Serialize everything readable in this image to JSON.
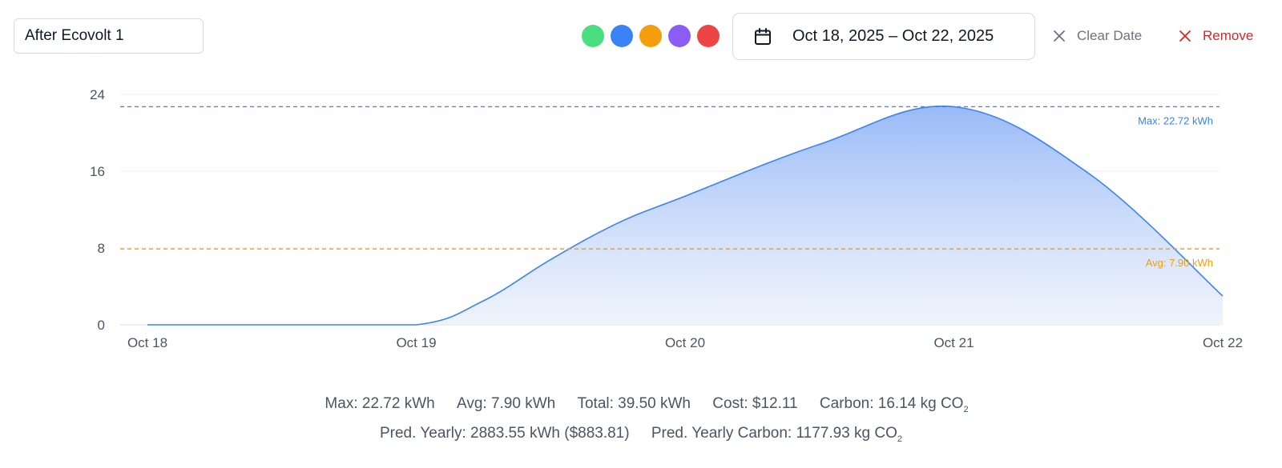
{
  "name_input": {
    "value": "After Ecovolt 1"
  },
  "swatches": [
    "#4ade80",
    "#3b82f6",
    "#f59e0b",
    "#8b5cf6",
    "#ef4444"
  ],
  "date_range": {
    "label": "Oct 18, 2025 – Oct 22, 2025",
    "icon": "calendar-icon"
  },
  "actions": {
    "clear_label": "Clear Date",
    "remove_label": "Remove"
  },
  "colors": {
    "line": "#3b82f6",
    "max_line": "#3b82f6",
    "avg_line": "#f59e0b",
    "remove": "#dc2626",
    "grid": "#eeeeee"
  },
  "chart_data": {
    "type": "area",
    "x_labels": [
      "Oct 18",
      "Oct 19",
      "Oct 20",
      "Oct 21",
      "Oct 22"
    ],
    "x": [
      0,
      0.5,
      1,
      1.25,
      1.5,
      1.75,
      2,
      2.5,
      3,
      3.5,
      4
    ],
    "y": [
      0,
      0,
      0,
      2.5,
      6.8,
      10.6,
      13.4,
      18.8,
      22.72,
      15.8,
      3.0
    ],
    "ylim": [
      0,
      24
    ],
    "yticks": [
      0,
      8,
      16,
      24
    ],
    "max_line": {
      "value": 22.72,
      "label": "Max: 22.72 kWh"
    },
    "avg_line": {
      "value": 7.9,
      "label": "Avg: 7.90 kWh"
    },
    "grid": true
  },
  "stats": {
    "max": "Max: 22.72 kWh",
    "avg": "Avg: 7.90 kWh",
    "total": "Total: 39.50 kWh",
    "cost": "Cost: $12.11",
    "carbon": "Carbon: 16.14 kg CO",
    "carbon_sub": "2",
    "pred_yearly": "Pred. Yearly: 2883.55 kWh ($883.81)",
    "pred_carbon": "Pred. Yearly Carbon: 1177.93 kg CO",
    "pred_carbon_sub": "2"
  }
}
